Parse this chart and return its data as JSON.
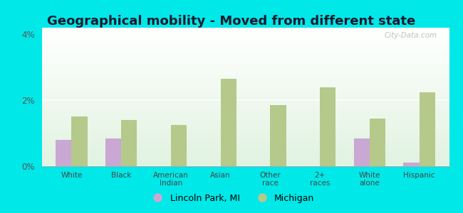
{
  "title": "Geographical mobility - Moved from different state",
  "categories": [
    "White",
    "Black",
    "American\nIndian",
    "Asian",
    "Other\nrace",
    "2+\nraces",
    "White\nalone",
    "Hispanic"
  ],
  "lincoln_park": [
    0.8,
    0.85,
    0.0,
    0.0,
    0.0,
    0.0,
    0.85,
    0.1
  ],
  "michigan": [
    1.5,
    1.4,
    1.25,
    2.65,
    1.85,
    2.4,
    1.45,
    2.25
  ],
  "bar_color_lp": "#c9a8d4",
  "bar_color_mi": "#b5c98a",
  "background_color": "#00e8e8",
  "ylim": [
    0,
    4.2
  ],
  "yticks": [
    0,
    2,
    4
  ],
  "ytick_labels": [
    "0%",
    "2%",
    "4%"
  ],
  "legend_lp": "Lincoln Park, MI",
  "legend_mi": "Michigan",
  "bar_width": 0.32,
  "title_fontsize": 13,
  "watermark": "City-Data.com"
}
